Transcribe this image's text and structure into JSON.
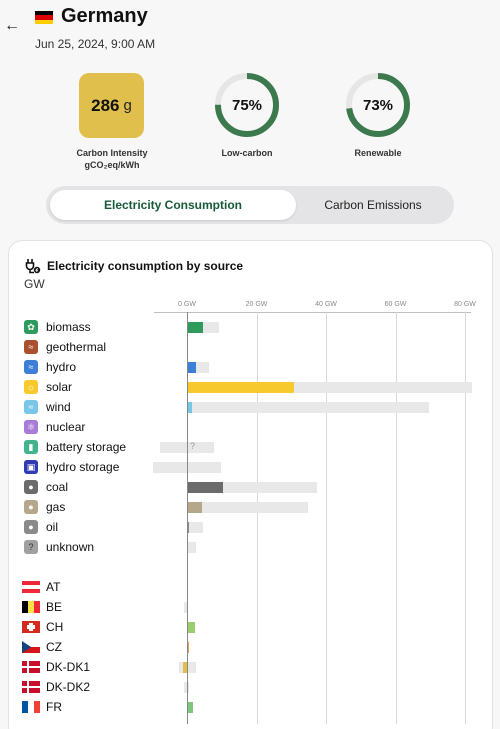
{
  "header": {
    "back_icon": "arrow-left-icon",
    "country": "Germany",
    "datetime": "Jun 25, 2024, 9:00 AM"
  },
  "kpis": {
    "carbon_intensity_value": "286",
    "carbon_intensity_unit": "g",
    "carbon_intensity_label_1": "Carbon Intensity",
    "carbon_intensity_label_2": "gCO₂eq/kWh",
    "low_carbon_pct": "75%",
    "low_carbon_fraction": 0.75,
    "low_carbon_label": "Low-carbon",
    "renewable_pct": "73%",
    "renewable_fraction": 0.73,
    "renewable_label": "Renewable",
    "ring_color": "#3c7a4e",
    "intensity_color": "#e1bf4d"
  },
  "toggle": {
    "active": "Electricity Consumption",
    "inactive": "Carbon Emissions"
  },
  "card": {
    "title": "Electricity consumption by source",
    "unit": "GW"
  },
  "chart_data": {
    "type": "bar",
    "xlabel": "",
    "ylabel": "",
    "xlim": [
      0,
      80
    ],
    "ticks": [
      "0 GW",
      "20 GW",
      "40 GW",
      "60 GW",
      "80 GW"
    ],
    "tick_values": [
      0,
      20,
      40,
      60,
      80
    ],
    "sources": [
      {
        "label": "biomass",
        "value": 4.7,
        "capacity": 9.1,
        "color": "#2e9a5c",
        "icon": "leaf-icon"
      },
      {
        "label": "geothermal",
        "value": 0,
        "capacity": 0,
        "color": "#a9512f",
        "icon": "geothermal-icon"
      },
      {
        "label": "hydro",
        "value": 2.5,
        "capacity": 6.2,
        "color": "#3b7fd6",
        "icon": "water-icon"
      },
      {
        "label": "solar",
        "value": 30.8,
        "capacity": 82.0,
        "color": "#f7c92c",
        "icon": "sun-icon"
      },
      {
        "label": "wind",
        "value": 1.5,
        "capacity": 69.6,
        "color": "#78c7e8",
        "icon": "wind-icon"
      },
      {
        "label": "nuclear",
        "value": 0,
        "capacity": 0,
        "color": "#a97ad8",
        "icon": "atom-icon"
      },
      {
        "label": "battery storage",
        "value": 0,
        "capacity": 7.8,
        "capacity_min": -7.8,
        "color": "#42b38c",
        "icon": "battery-icon",
        "unknown": true
      },
      {
        "label": "hydro storage",
        "value": 0,
        "capacity": 9.7,
        "capacity_min": -9.7,
        "color": "#2f3bb3",
        "icon": "hydro-storage-icon"
      },
      {
        "label": "coal",
        "value": 10.3,
        "capacity": 37.4,
        "color": "#6b6b6b",
        "icon": "coal-icon"
      },
      {
        "label": "gas",
        "value": 4.2,
        "capacity": 34.8,
        "color": "#b5a88a",
        "icon": "gas-icon"
      },
      {
        "label": "oil",
        "value": 0.3,
        "capacity": 4.7,
        "color": "#8a8a8a",
        "icon": "oil-icon"
      },
      {
        "label": "unknown",
        "value": 0,
        "capacity": 2.6,
        "color": "#a0a0a0",
        "icon": "question-icon"
      }
    ],
    "exchanges": [
      {
        "label": "AT",
        "value": 0,
        "capacity": 0,
        "color": "#9bcc6e",
        "flag": [
          "#ed2939",
          "#ffffff",
          "#ed2939"
        ],
        "flag_dir": "h"
      },
      {
        "label": "BE",
        "value": 0,
        "capacity": -1.0,
        "color": "#9bcc6e",
        "flag": [
          "#000000",
          "#fae042",
          "#ed2939"
        ],
        "flag_dir": "v"
      },
      {
        "label": "CH",
        "value": 2.4,
        "capacity": 2.4,
        "color": "#9bcc6e",
        "flag": [
          "#d52b1e"
        ],
        "flag_dir": "ch"
      },
      {
        "label": "CZ",
        "value": 0.2,
        "capacity": 0.2,
        "color": "#e1a04d",
        "flag": [
          "#ffffff",
          "#d7141a",
          "#11457e"
        ],
        "flag_dir": "cz"
      },
      {
        "label": "DK-DK1",
        "value": -1.2,
        "capacity": 2.6,
        "capacity_min": -2.2,
        "color": "#e1bf4d",
        "flag": [
          "#c8102e"
        ],
        "flag_dir": "dk"
      },
      {
        "label": "DK-DK2",
        "value": 0,
        "capacity": 0.6,
        "capacity_min": -0.9,
        "color": "#e1bf4d",
        "flag": [
          "#c8102e"
        ],
        "flag_dir": "dk"
      },
      {
        "label": "FR",
        "value": 1.6,
        "capacity": 1.6,
        "color": "#7fc77a",
        "flag": [
          "#0055a4",
          "#ffffff",
          "#ef4135"
        ],
        "flag_dir": "v"
      }
    ]
  }
}
